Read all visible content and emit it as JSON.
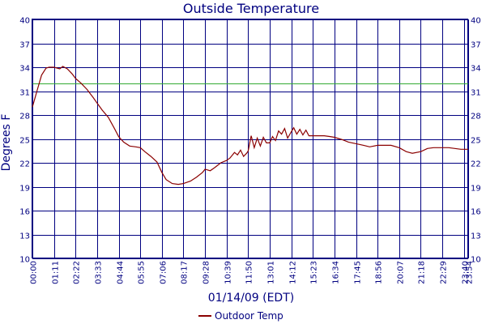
{
  "chart_data": {
    "type": "line",
    "title": "Outside Temperature",
    "xlabel": "01/14/09 (EDT)",
    "ylabel": "Degrees F",
    "ylim": [
      10,
      40
    ],
    "yticks": [
      "10",
      "13",
      "16",
      "19",
      "22",
      "25",
      "28",
      "31",
      "34",
      "37",
      "40"
    ],
    "x_tick_labels": [
      "00:00",
      "01:11",
      "02:22",
      "03:33",
      "04:44",
      "05:55",
      "07:06",
      "08:17",
      "09:28",
      "10:39",
      "11:50",
      "13:01",
      "14:12",
      "15:23",
      "16:34",
      "17:45",
      "18:56",
      "20:07",
      "21:18",
      "22:29",
      "23:40",
      "23:54"
    ],
    "grid": true,
    "legend_position": "bottom",
    "reference_line": 32,
    "series": [
      {
        "name": "Outdoor Temp",
        "color": "#8b0000",
        "x": [
          "00:00",
          "00:15",
          "00:30",
          "00:45",
          "00:55",
          "01:11",
          "01:30",
          "01:40",
          "01:55",
          "02:10",
          "02:22",
          "02:40",
          "03:00",
          "03:20",
          "03:33",
          "03:50",
          "04:10",
          "04:30",
          "04:44",
          "05:00",
          "05:20",
          "05:40",
          "05:55",
          "06:10",
          "06:30",
          "06:50",
          "07:06",
          "07:20",
          "07:40",
          "08:00",
          "08:17",
          "08:40",
          "09:00",
          "09:20",
          "09:28",
          "09:45",
          "10:00",
          "10:20",
          "10:39",
          "10:50",
          "11:05",
          "11:15",
          "11:25",
          "11:35",
          "11:45",
          "11:50",
          "12:00",
          "12:10",
          "12:20",
          "12:30",
          "12:40",
          "12:50",
          "13:01",
          "13:10",
          "13:20",
          "13:30",
          "13:40",
          "13:50",
          "14:00",
          "14:12",
          "14:20",
          "14:30",
          "14:40",
          "14:50",
          "15:00",
          "15:10",
          "15:23",
          "15:40",
          "16:00",
          "16:20",
          "16:34",
          "17:00",
          "17:20",
          "17:45",
          "18:10",
          "18:30",
          "18:56",
          "19:20",
          "19:40",
          "20:07",
          "20:30",
          "20:50",
          "21:18",
          "21:40",
          "22:00",
          "22:29",
          "22:50",
          "23:10",
          "23:30",
          "23:40",
          "23:54"
        ],
        "values": [
          29,
          31,
          33,
          33.9,
          34,
          34,
          33.8,
          34.1,
          33.8,
          33.2,
          32.6,
          32,
          31.2,
          30.2,
          29.5,
          28.6,
          27.7,
          26.3,
          25.3,
          24.6,
          24.1,
          24.0,
          23.9,
          23.4,
          22.8,
          22.1,
          20.8,
          19.9,
          19.4,
          19.3,
          19.4,
          19.7,
          20.2,
          20.8,
          21.2,
          21.0,
          21.4,
          22.0,
          22.3,
          22.6,
          23.3,
          23.0,
          23.6,
          22.8,
          23.2,
          23.5,
          25.4,
          23.9,
          25.1,
          24.1,
          25.2,
          24.5,
          24.5,
          25.3,
          24.8,
          26.0,
          25.6,
          26.3,
          25.1,
          25.9,
          26.4,
          25.6,
          26.2,
          25.5,
          26.1,
          25.4,
          25.4,
          25.4,
          25.4,
          25.3,
          25.2,
          24.9,
          24.6,
          24.4,
          24.2,
          24.0,
          24.2,
          24.2,
          24.2,
          23.9,
          23.4,
          23.2,
          23.4,
          23.8,
          23.9,
          23.9,
          23.9,
          23.8,
          23.7,
          23.7,
          23.7
        ]
      }
    ]
  }
}
